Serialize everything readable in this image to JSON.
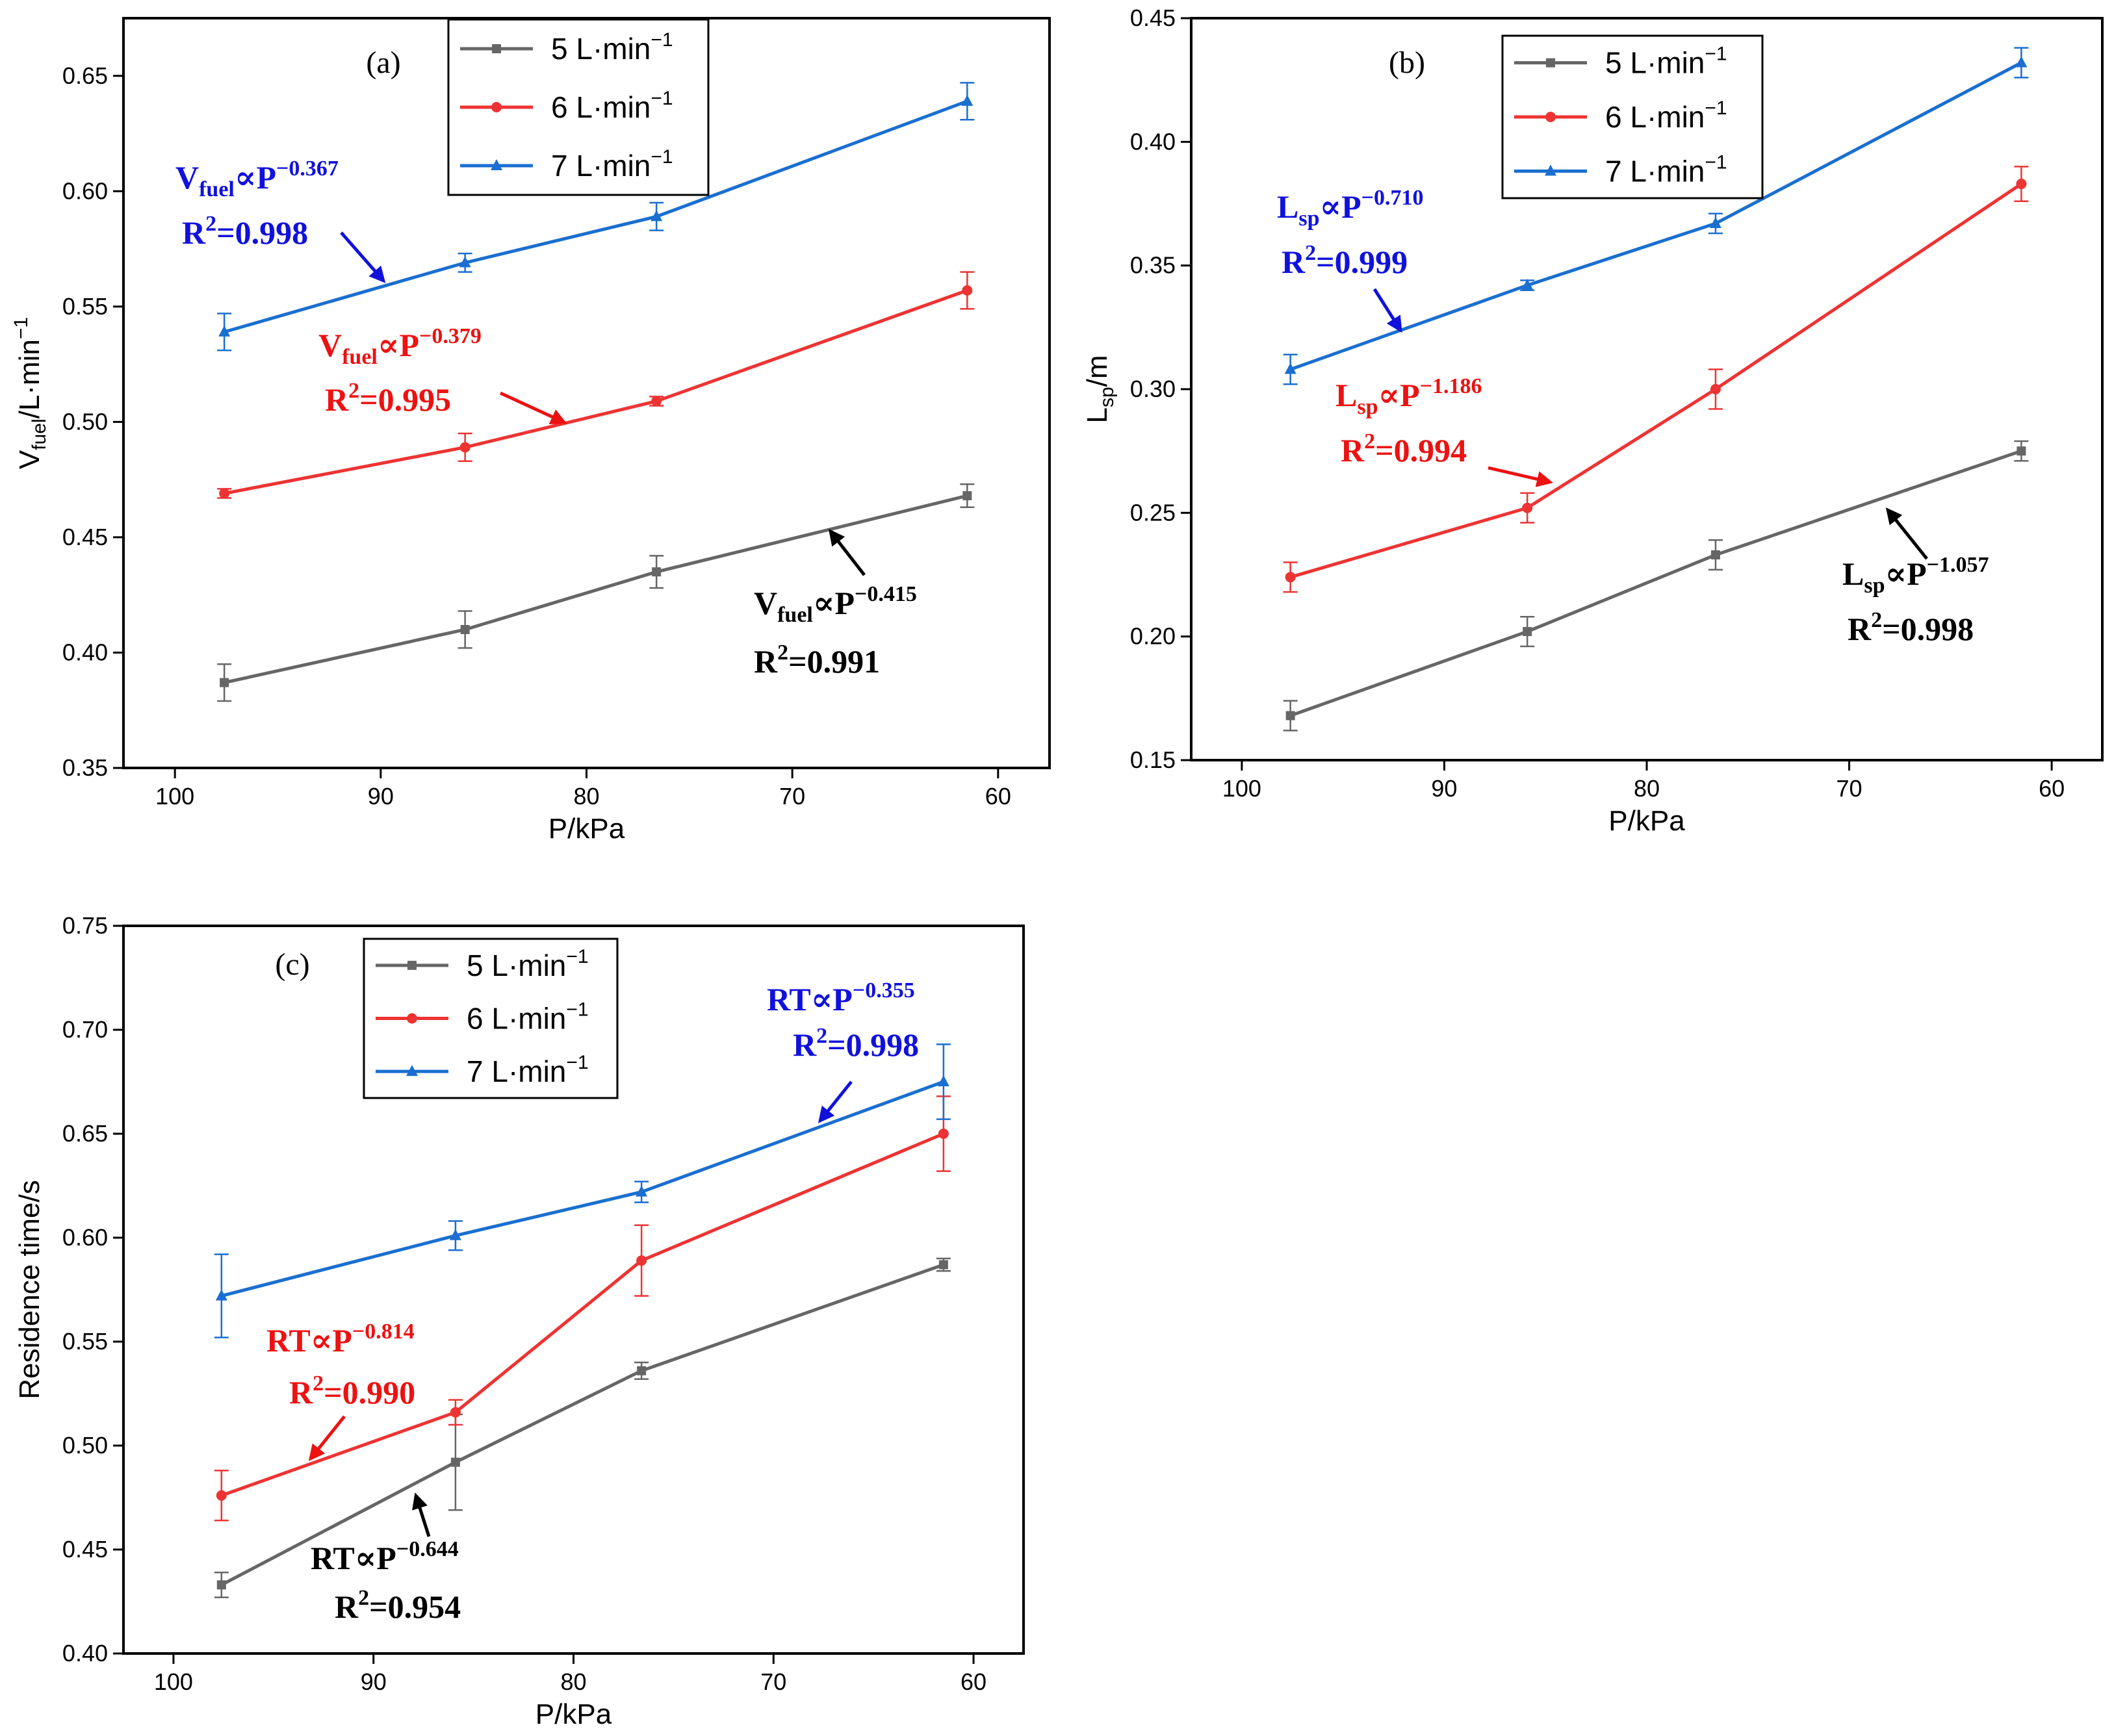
{
  "chart_data": [
    {
      "type": "line",
      "panel_label": "(a)",
      "xlabel": "P/kPa",
      "ylabel_main": "V",
      "ylabel_sub": "fuel",
      "ylabel_rest": "/L·min",
      "ylabel_sup": "−1",
      "xlim": [
        102.5,
        57.5
      ],
      "ylim": [
        0.35,
        0.675
      ],
      "xticks": [
        100,
        90,
        80,
        70,
        60
      ],
      "xtick_labels": [
        "100",
        "90",
        "80",
        "70",
        "60"
      ],
      "yticks": [
        0.35,
        0.4,
        0.45,
        0.5,
        0.55,
        0.6,
        0.65
      ],
      "ytick_labels": [
        "0.35",
        "0.40",
        "0.45",
        "0.50",
        "0.55",
        "0.60",
        "0.65"
      ],
      "x": [
        97.6,
        85.9,
        76.6,
        61.5
      ],
      "legend_position": "top-center",
      "series": [
        {
          "name": "5 L·min",
          "values": [
            0.387,
            0.41,
            0.435,
            0.468
          ],
          "errors": [
            0.008,
            0.008,
            0.007,
            0.005
          ],
          "marker": "square"
        },
        {
          "name": "6 L·min",
          "values": [
            0.469,
            0.489,
            0.509,
            0.557
          ],
          "errors": [
            0.002,
            0.006,
            0.002,
            0.008
          ],
          "marker": "circle"
        },
        {
          "name": "7 L·min",
          "values": [
            0.539,
            0.569,
            0.589,
            0.639
          ],
          "errors": [
            0.008,
            0.004,
            0.006,
            0.008
          ],
          "marker": "triangle"
        }
      ],
      "annotations": [
        {
          "series": 2,
          "main": "V",
          "sub": "fuel",
          "rel": "∝P",
          "exp": "−0.367",
          "r2_label": "R",
          "r2_sup": "2",
          "r2_value": "=0.998"
        },
        {
          "series": 1,
          "main": "V",
          "sub": "fuel",
          "rel": "∝P",
          "exp": "−0.379",
          "r2_label": "R",
          "r2_sup": "2",
          "r2_value": "=0.995"
        },
        {
          "series": 0,
          "main": "V",
          "sub": "fuel",
          "rel": "∝P",
          "exp": "−0.415",
          "r2_label": "R",
          "r2_sup": "2",
          "r2_value": "=0.991"
        }
      ]
    },
    {
      "type": "line",
      "panel_label": "(b)",
      "xlabel": "P/kPa",
      "ylabel_main": "L",
      "ylabel_sub": "sp",
      "ylabel_rest": "/m",
      "ylabel_sup": "",
      "xlim": [
        102.5,
        57.5
      ],
      "ylim": [
        0.15,
        0.45
      ],
      "xticks": [
        100,
        90,
        80,
        70,
        60
      ],
      "xtick_labels": [
        "100",
        "90",
        "80",
        "70",
        "60"
      ],
      "yticks": [
        0.15,
        0.2,
        0.25,
        0.3,
        0.35,
        0.4,
        0.45
      ],
      "ytick_labels": [
        "0.15",
        "0.20",
        "0.25",
        "0.30",
        "0.35",
        "0.40",
        "0.45"
      ],
      "x": [
        97.6,
        85.9,
        76.6,
        61.5
      ],
      "legend_position": "top-center",
      "series": [
        {
          "name": "5 L·min",
          "values": [
            0.168,
            0.202,
            0.233,
            0.275
          ],
          "errors": [
            0.006,
            0.006,
            0.006,
            0.004
          ],
          "marker": "square"
        },
        {
          "name": "6 L·min",
          "values": [
            0.224,
            0.252,
            0.3,
            0.383
          ],
          "errors": [
            0.006,
            0.006,
            0.008,
            0.007
          ],
          "marker": "circle"
        },
        {
          "name": "7 L·min",
          "values": [
            0.308,
            0.342,
            0.367,
            0.432
          ],
          "errors": [
            0.006,
            0.002,
            0.004,
            0.006
          ],
          "marker": "triangle"
        }
      ],
      "annotations": [
        {
          "series": 2,
          "main": "L",
          "sub": "sp",
          "rel": "∝P",
          "exp": "−0.710",
          "r2_label": "R",
          "r2_sup": "2",
          "r2_value": "=0.999"
        },
        {
          "series": 1,
          "main": "L",
          "sub": "sp",
          "rel": "∝P",
          "exp": "−1.186",
          "r2_label": "R",
          "r2_sup": "2",
          "r2_value": "=0.994"
        },
        {
          "series": 0,
          "main": "L",
          "sub": "sp",
          "rel": "∝P",
          "exp": "−1.057",
          "r2_label": "R",
          "r2_sup": "2",
          "r2_value": "=0.998"
        }
      ]
    },
    {
      "type": "line",
      "panel_label": "(c)",
      "xlabel": "P/kPa",
      "ylabel_main": "Residence time/s",
      "ylabel_sub": "",
      "ylabel_rest": "",
      "ylabel_sup": "",
      "xlim": [
        102.5,
        57.5
      ],
      "ylim": [
        0.4,
        0.75
      ],
      "xticks": [
        100,
        90,
        80,
        70,
        60
      ],
      "xtick_labels": [
        "100",
        "90",
        "80",
        "70",
        "60"
      ],
      "yticks": [
        0.4,
        0.45,
        0.5,
        0.55,
        0.6,
        0.65,
        0.7,
        0.75
      ],
      "ytick_labels": [
        "0.40",
        "0.45",
        "0.50",
        "0.55",
        "0.60",
        "0.65",
        "0.70",
        "0.75"
      ],
      "x": [
        97.6,
        85.9,
        76.6,
        61.5
      ],
      "legend_position": "top-left",
      "series": [
        {
          "name": "5 L·min",
          "values": [
            0.433,
            0.492,
            0.536,
            0.587
          ],
          "errors": [
            0.006,
            0.023,
            0.004,
            0.003
          ],
          "marker": "square"
        },
        {
          "name": "6 L·min",
          "values": [
            0.476,
            0.516,
            0.589,
            0.65
          ],
          "errors": [
            0.012,
            0.006,
            0.017,
            0.018
          ],
          "marker": "circle"
        },
        {
          "name": "7 L·min",
          "values": [
            0.572,
            0.601,
            0.622,
            0.675
          ],
          "errors": [
            0.02,
            0.007,
            0.005,
            0.018
          ],
          "marker": "triangle"
        }
      ],
      "annotations": [
        {
          "series": 2,
          "main": "RT",
          "sub": "",
          "rel": "∝P",
          "exp": "−0.355",
          "r2_label": "R",
          "r2_sup": "2",
          "r2_value": "=0.998"
        },
        {
          "series": 1,
          "main": "RT",
          "sub": "",
          "rel": "∝P",
          "exp": "−0.814",
          "r2_label": "R",
          "r2_sup": "2",
          "r2_value": "=0.990"
        },
        {
          "series": 0,
          "main": "RT",
          "sub": "",
          "rel": "∝P",
          "exp": "−0.644",
          "r2_label": "R",
          "r2_sup": "2",
          "r2_value": "=0.954"
        }
      ]
    }
  ],
  "legend_unit_sup": "−1",
  "colors": {
    "series0": "#666666",
    "series1": "#ee3333",
    "series2": "#1a6fd0",
    "axis": "#000000",
    "annot0": "#000000",
    "annot1": "#ee1111",
    "annot2": "#1111dd"
  }
}
